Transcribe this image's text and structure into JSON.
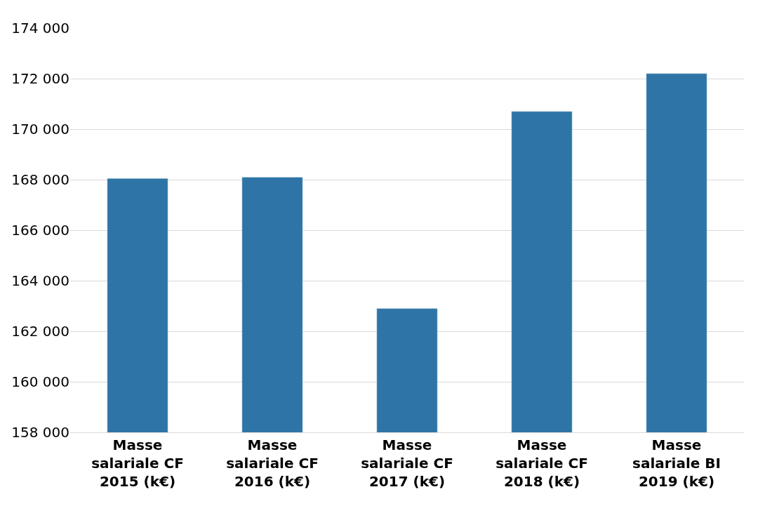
{
  "chart_data": {
    "type": "bar",
    "categories": [
      "Masse salariale CF 2015 (k€)",
      "Masse salariale CF 2016 (k€)",
      "Masse salariale CF 2017 (k€)",
      "Masse salariale CF 2018 (k€)",
      "Masse salariale BI 2019 (k€)"
    ],
    "values": [
      168050,
      168100,
      162900,
      170700,
      172200
    ],
    "color": "#2e74a6",
    "ylim": [
      158000,
      174000
    ],
    "yticks": [
      {
        "value": 158000,
        "label": "158 000"
      },
      {
        "value": 160000,
        "label": "160 000"
      },
      {
        "value": 162000,
        "label": "162 000"
      },
      {
        "value": 164000,
        "label": "164 000"
      },
      {
        "value": 166000,
        "label": "166 000"
      },
      {
        "value": 168000,
        "label": "168 000"
      },
      {
        "value": 170000,
        "label": "170 000"
      },
      {
        "value": 172000,
        "label": "172 000"
      },
      {
        "value": 174000,
        "label": "174 000"
      }
    ],
    "grid": "y"
  }
}
